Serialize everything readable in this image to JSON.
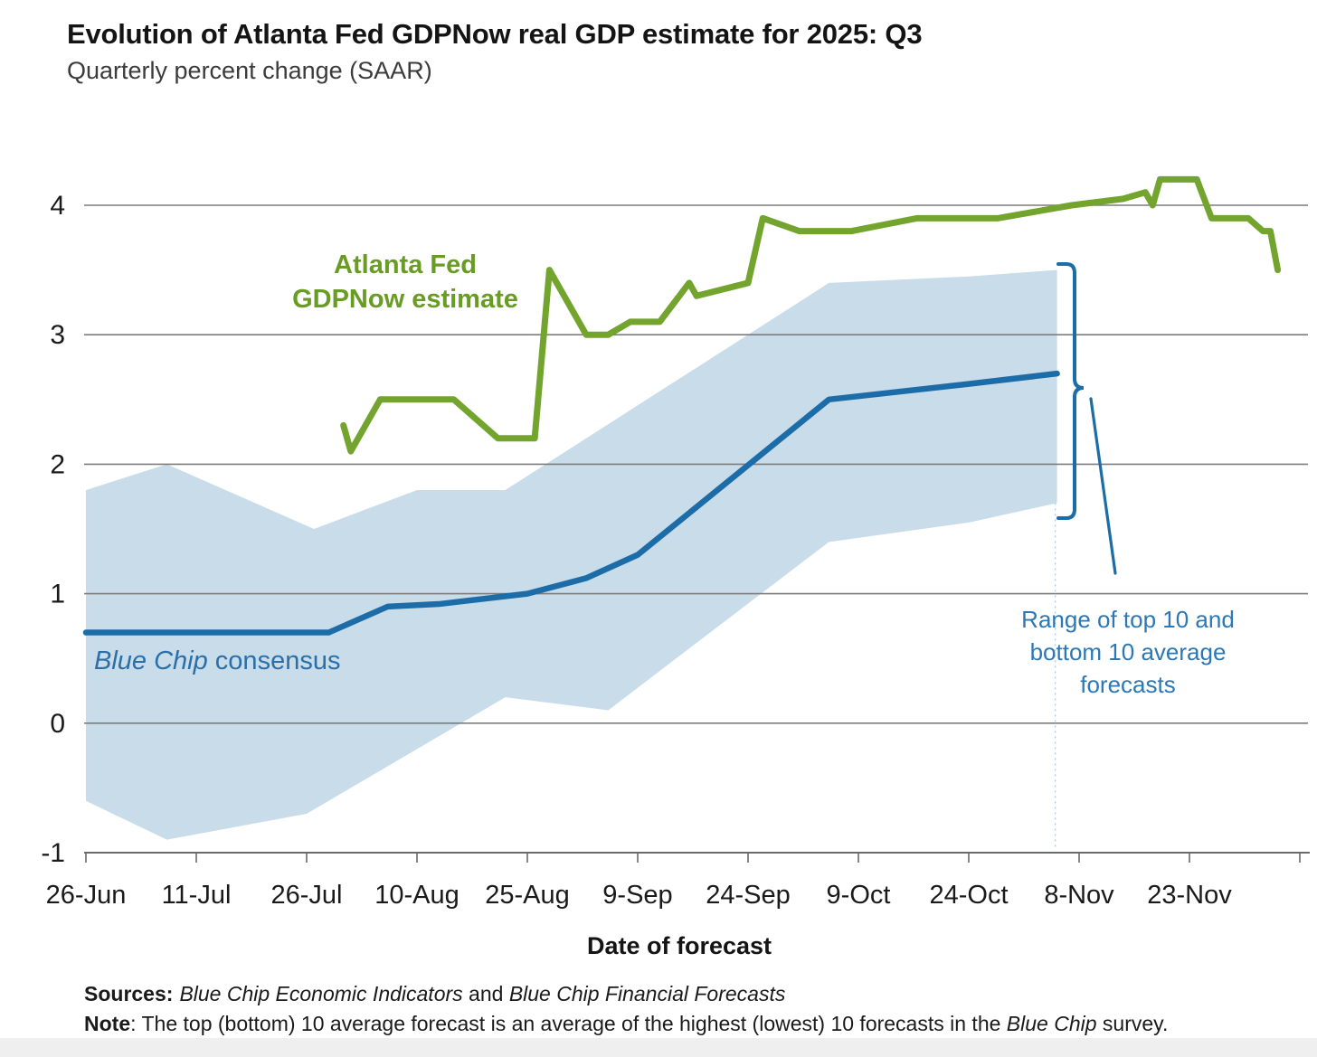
{
  "title": "Evolution of Atlanta Fed GDPNow real GDP estimate for 2025: Q3",
  "subtitle": "Quarterly percent change (SAAR)",
  "x_axis_title": "Date of forecast",
  "annotations": {
    "gdpnow_label_line1": "Atlanta Fed",
    "gdpnow_label_line2": "GDPNow estimate",
    "consensus_italic": "Blue Chip",
    "consensus_rest": " consensus",
    "range_label_lines": [
      "Range of top 10 and",
      "bottom 10 average",
      "forecasts"
    ]
  },
  "footer": {
    "sources_label": "Sources:",
    "sources_italic1": "Blue Chip Economic Indicators",
    "sources_mid": " and ",
    "sources_italic2": "Blue Chip Financial Forecasts",
    "note_label": "Note",
    "note_pre": ": The top (bottom) 10 average forecast is an average of the highest (lowest) 10 forecasts in the ",
    "note_italic": "Blue Chip",
    "note_post": " survey."
  },
  "colors": {
    "green": "#73a42e",
    "blue": "#1c6ca8",
    "band": "#c8dcea",
    "grid": "#7d7d7d",
    "axis": "#6b6b6b",
    "text": "#1a1a1a",
    "dotted": "#b6cee0"
  },
  "chart_data": {
    "type": "line",
    "title": "Evolution of Atlanta Fed GDPNow real GDP estimate for 2025: Q3",
    "xlabel": "Date of forecast",
    "ylabel": "Quarterly percent change (SAAR)",
    "ylim": [
      -1,
      4.6
    ],
    "grid": "horizontal",
    "x_ticks": [
      "26-Jun",
      "11-Jul",
      "26-Jul",
      "10-Aug",
      "25-Aug",
      "9-Sep",
      "24-Sep",
      "9-Oct",
      "24-Oct",
      "8-Nov",
      "23-Nov"
    ],
    "x_axis_end": "8-Dec",
    "y_ticks": [
      {
        "label": "4",
        "value": 4
      },
      {
        "label": "3",
        "value": 3
      },
      {
        "label": "2",
        "value": 2
      },
      {
        "label": "1",
        "value": 1
      },
      {
        "label": "0",
        "value": 0
      },
      {
        "label": "-1",
        "value": -1
      }
    ],
    "y_gridlines": [
      4,
      3,
      2,
      1,
      0
    ],
    "series": [
      {
        "name": "Atlanta Fed GDPNow estimate",
        "color_key": "green",
        "width": 7,
        "data_name": "gdpnow-line",
        "points": [
          [
            "31-Jul",
            2.3
          ],
          [
            "1-Aug",
            2.1
          ],
          [
            "5-Aug",
            2.5
          ],
          [
            "15-Aug",
            2.5
          ],
          [
            "21-Aug",
            2.2
          ],
          [
            "26-Aug",
            2.2
          ],
          [
            "28-Aug",
            3.5
          ],
          [
            "2-Sep",
            3.0
          ],
          [
            "5-Sep",
            3.0
          ],
          [
            "8-Sep",
            3.1
          ],
          [
            "12-Sep",
            3.1
          ],
          [
            "16-Sep",
            3.4
          ],
          [
            "17-Sep",
            3.3
          ],
          [
            "24-Sep",
            3.4
          ],
          [
            "26-Sep",
            3.9
          ],
          [
            "1-Oct",
            3.8
          ],
          [
            "8-Oct",
            3.8
          ],
          [
            "17-Oct",
            3.9
          ],
          [
            "28-Oct",
            3.9
          ],
          [
            "7-Nov",
            4.0
          ],
          [
            "14-Nov",
            4.05
          ],
          [
            "17-Nov",
            4.1
          ],
          [
            "18-Nov",
            4.0
          ],
          [
            "19-Nov",
            4.2
          ],
          [
            "24-Nov",
            4.2
          ],
          [
            "26-Nov",
            3.9
          ],
          [
            "1-Dec",
            3.9
          ],
          [
            "3-Dec",
            3.8
          ],
          [
            "4-Dec",
            3.8
          ],
          [
            "5-Dec",
            3.5
          ]
        ]
      },
      {
        "name": "Blue Chip consensus",
        "color_key": "blue",
        "width": 6.5,
        "data_name": "consensus-line",
        "points": [
          [
            "26-Jun",
            0.7
          ],
          [
            "29-Jul",
            0.7
          ],
          [
            "6-Aug",
            0.9
          ],
          [
            "13-Aug",
            0.92
          ],
          [
            "25-Aug",
            1.0
          ],
          [
            "2-Sep",
            1.12
          ],
          [
            "9-Sep",
            1.3
          ],
          [
            "5-Oct",
            2.5
          ],
          [
            "24-Oct",
            2.62
          ],
          [
            "5-Nov",
            2.7
          ]
        ]
      }
    ],
    "band": {
      "name": "Range of top 10 and bottom 10 average forecasts",
      "top": [
        [
          "26-Jun",
          1.8
        ],
        [
          "7-Jul",
          2.0
        ],
        [
          "27-Jul",
          1.5
        ],
        [
          "10-Aug",
          1.8
        ],
        [
          "22-Aug",
          1.8
        ],
        [
          "5-Oct",
          3.4
        ],
        [
          "24-Oct",
          3.45
        ],
        [
          "5-Nov",
          3.5
        ]
      ],
      "bottom": [
        [
          "26-Jun",
          -0.6
        ],
        [
          "7-Jul",
          -0.9
        ],
        [
          "26-Jul",
          -0.7
        ],
        [
          "22-Aug",
          0.2
        ],
        [
          "5-Sep",
          0.1
        ],
        [
          "5-Oct",
          1.4
        ],
        [
          "24-Oct",
          1.55
        ],
        [
          "5-Nov",
          1.7
        ]
      ]
    }
  }
}
